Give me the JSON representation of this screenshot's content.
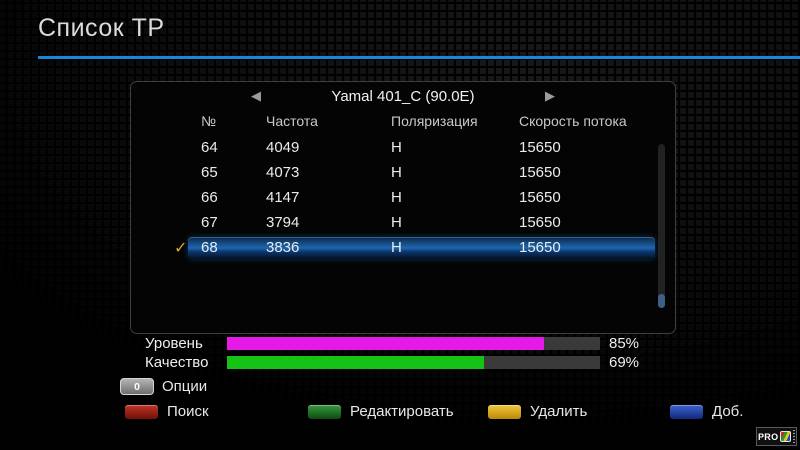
{
  "header": {
    "title": "Список ТР",
    "accent_line_color": "#1a86d9"
  },
  "panel": {
    "satellite": {
      "prev_glyph": "◀",
      "name": "Yamal 401_C (90.0E)",
      "next_glyph": "▶"
    },
    "table": {
      "columns": [
        "№",
        "Частота",
        "Поляризация",
        "Скорость потока"
      ],
      "check_glyph": "✓",
      "rows": [
        {
          "num": "64",
          "frequency": "4049",
          "polarization": "H",
          "symbol_rate": "15650",
          "selected": false,
          "checked": false
        },
        {
          "num": "65",
          "frequency": "4073",
          "polarization": "H",
          "symbol_rate": "15650",
          "selected": false,
          "checked": false
        },
        {
          "num": "66",
          "frequency": "4147",
          "polarization": "H",
          "symbol_rate": "15650",
          "selected": false,
          "checked": false
        },
        {
          "num": "67",
          "frequency": "3794",
          "polarization": "H",
          "symbol_rate": "15650",
          "selected": false,
          "checked": false
        },
        {
          "num": "68",
          "frequency": "3836",
          "polarization": "H",
          "symbol_rate": "15650",
          "selected": true,
          "checked": true
        }
      ]
    }
  },
  "signal": {
    "level": {
      "label": "Уровень",
      "percent": 85,
      "display": "85%",
      "color": "#e61ae6"
    },
    "quality": {
      "label": "Качество",
      "percent": 69,
      "display": "69%",
      "color": "#17c217"
    }
  },
  "footer": {
    "options": {
      "key": "0",
      "label": "Опции"
    },
    "color_buttons": [
      {
        "id": "red",
        "label": "Поиск",
        "color_top": "#c03428",
        "color_bottom": "#701009"
      },
      {
        "id": "green",
        "label": "Редактировать",
        "color_top": "#38993f",
        "color_bottom": "#0d4a12"
      },
      {
        "id": "yellow",
        "label": "Удалить",
        "color_top": "#f0c83e",
        "color_bottom": "#bb8a07"
      },
      {
        "id": "blue",
        "label": "Доб.",
        "color_top": "#3c63d0",
        "color_bottom": "#13287b"
      }
    ]
  },
  "brand": {
    "text": "PRO"
  }
}
